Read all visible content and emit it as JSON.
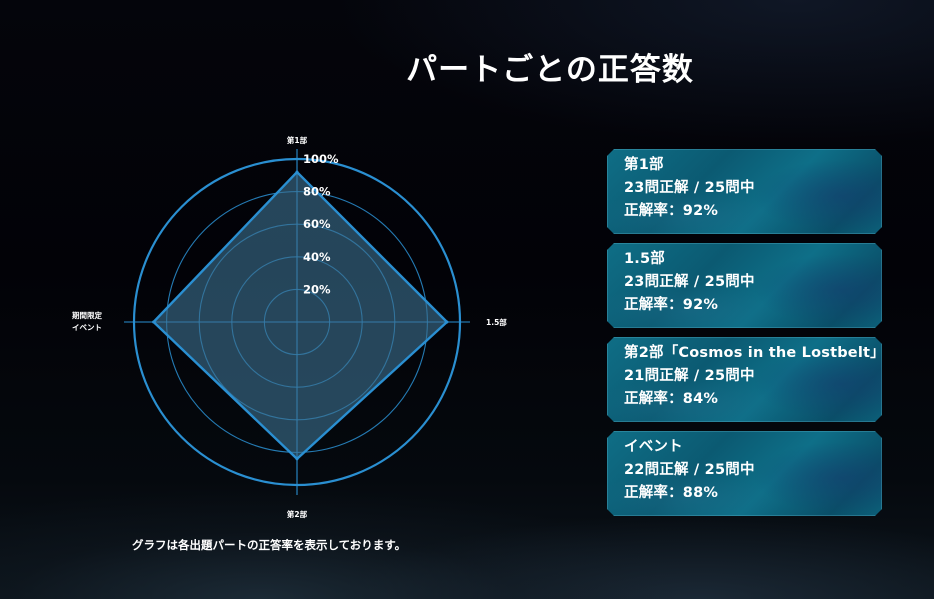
{
  "page": {
    "title": "パートごとの正答数",
    "caption": "グラフは各出題パートの正答率を表示しております。"
  },
  "colors": {
    "accent": "#2a8fd1",
    "fill": "#3b6f8e",
    "card_bg": "#0d6680"
  },
  "chart_data": {
    "type": "radar",
    "axes": [
      "第1部",
      "1.5部",
      "第2部",
      "期間限定\nイベント"
    ],
    "axis_labels": {
      "top": "第1部",
      "right": "1.5部",
      "bottom": "第2部",
      "left_line1": "期間限定",
      "left_line2": "イベント"
    },
    "values": [
      92,
      92,
      84,
      88
    ],
    "rmin": 0,
    "rmax": 100,
    "ticks": [
      {
        "value": 20,
        "label": "20%"
      },
      {
        "value": 40,
        "label": "40%"
      },
      {
        "value": 60,
        "label": "60%"
      },
      {
        "value": 80,
        "label": "80%"
      },
      {
        "value": 100,
        "label": "100%"
      }
    ],
    "grid": true,
    "unit": "%"
  },
  "cards": [
    {
      "title": "第1部",
      "score": "23問正解 / 25問中",
      "rate": "正解率：92%"
    },
    {
      "title": "1.5部",
      "score": "23問正解 / 25問中",
      "rate": "正解率：92%"
    },
    {
      "title": "第2部「Cosmos in the Lostbelt」",
      "score": "21問正解 / 25問中",
      "rate": "正解率：84%"
    },
    {
      "title": "イベント",
      "score": "22問正解 / 25問中",
      "rate": "正解率：88%"
    }
  ]
}
